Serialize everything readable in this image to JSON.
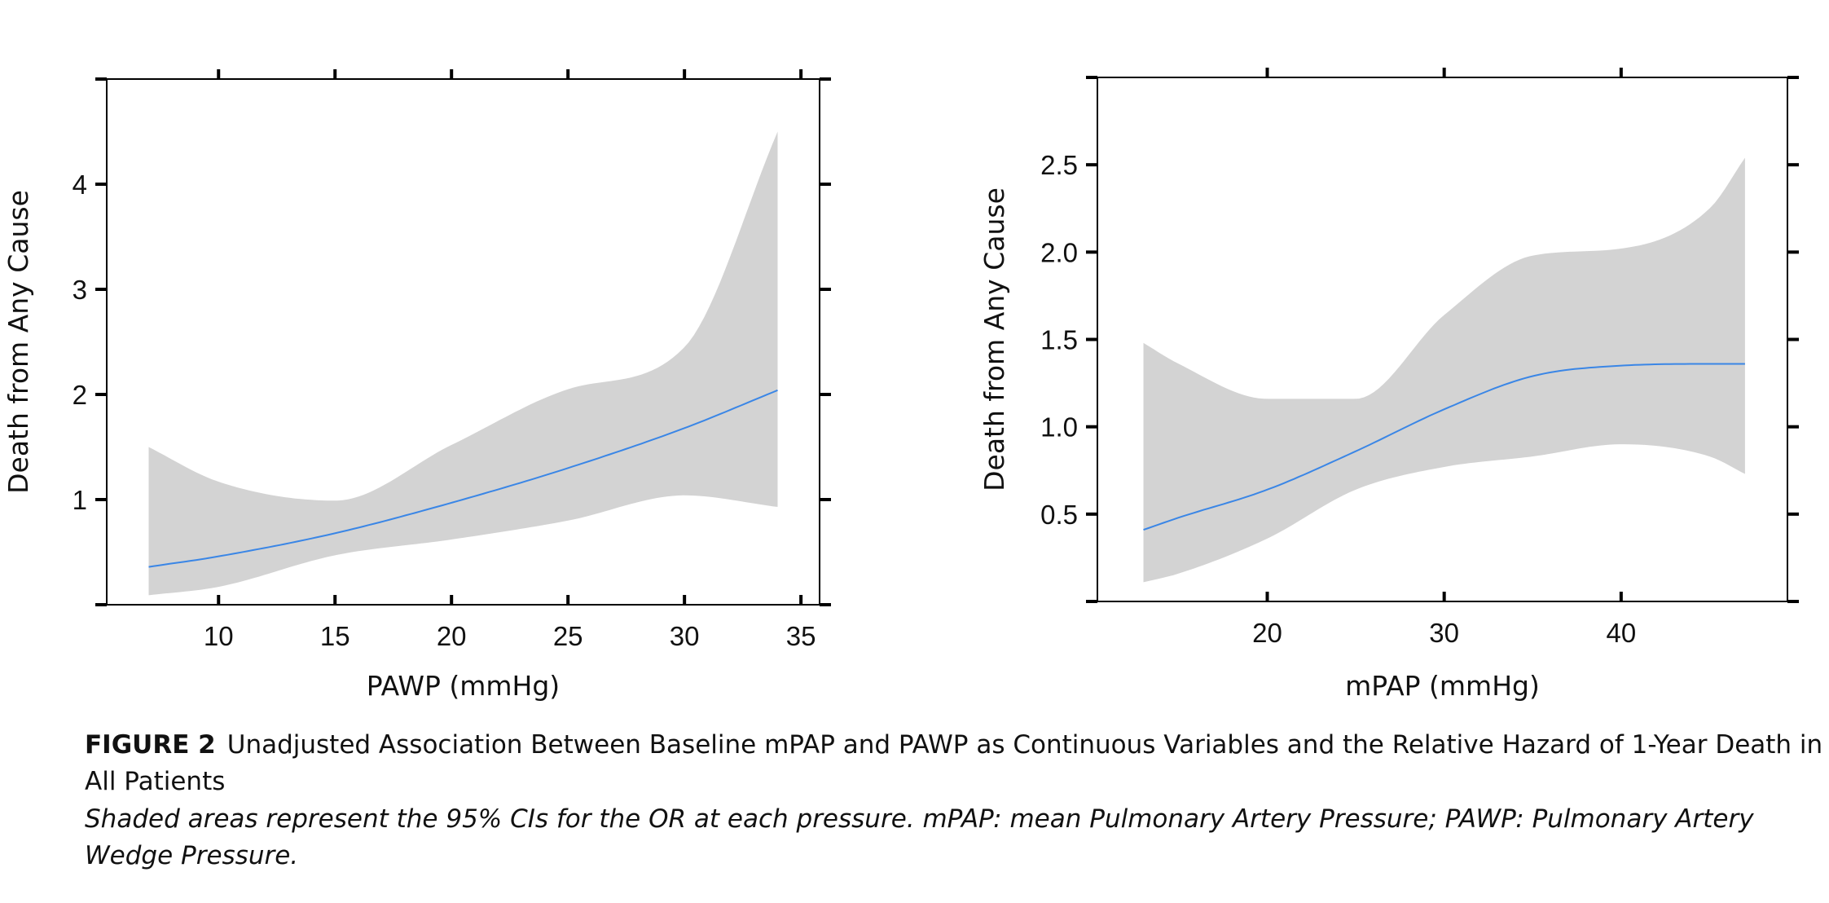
{
  "chart_data": [
    {
      "type": "line",
      "xlabel": "PAWP (mmHg)",
      "ylabel": "Death from Any Cause",
      "xlim": [
        5.2,
        35.8
      ],
      "ylim": [
        0,
        5.0
      ],
      "xticks": [
        10,
        15,
        20,
        25,
        30,
        35
      ],
      "yticks": [
        1,
        2,
        3,
        4
      ],
      "tick_labels_x": [
        "10",
        "15",
        "20",
        "25",
        "30",
        "35"
      ],
      "tick_labels_y": [
        "1",
        "2",
        "3",
        "4"
      ],
      "top_ticks": [
        10,
        15,
        20,
        25,
        30,
        35
      ],
      "right_ticks": [
        0,
        1,
        2,
        3,
        4,
        5
      ],
      "series": [
        {
          "x": [
            7,
            10,
            15,
            20,
            25,
            30,
            34
          ],
          "y": [
            0.36,
            0.46,
            0.68,
            0.97,
            1.3,
            1.68,
            2.04
          ],
          "ci_lower": [
            0.09,
            0.17,
            0.47,
            0.62,
            0.8,
            1.04,
            0.93
          ],
          "ci_upper": [
            1.5,
            1.17,
            0.99,
            1.52,
            2.05,
            2.45,
            4.5
          ]
        }
      ]
    },
    {
      "type": "line",
      "xlabel": "mPAP (mmHg)",
      "ylabel": "Death from Any Cause",
      "xlim": [
        10.4,
        49.4
      ],
      "ylim": [
        0,
        3.0
      ],
      "xticks": [
        20,
        30,
        40
      ],
      "yticks": [
        0.5,
        1.0,
        1.5,
        2.0,
        2.5
      ],
      "tick_labels_x": [
        "20",
        "30",
        "40"
      ],
      "tick_labels_y": [
        "0.5",
        "1.0",
        "1.5",
        "2.0",
        "2.5"
      ],
      "top_ticks": [
        20,
        30,
        40
      ],
      "right_ticks": [
        0,
        0.5,
        1.0,
        1.5,
        2.0,
        2.5,
        3.0
      ],
      "series": [
        {
          "x": [
            13,
            15,
            20,
            25,
            30,
            35,
            40,
            45,
            47
          ],
          "y": [
            0.41,
            0.48,
            0.64,
            0.86,
            1.1,
            1.29,
            1.35,
            1.36,
            1.36
          ],
          "ci_lower": [
            0.11,
            0.16,
            0.36,
            0.64,
            0.77,
            0.83,
            0.9,
            0.83,
            0.73
          ],
          "ci_upper": [
            1.48,
            1.36,
            1.16,
            1.16,
            1.64,
            1.98,
            2.02,
            2.25,
            2.54
          ]
        }
      ]
    }
  ],
  "caption": {
    "label": "FIGURE 2",
    "text": "Unadjusted Association Between Baseline mPAP and PAWP as Continuous Variables and the Relative Hazard of 1-Year Death in All Patients",
    "note": "Shaded areas represent the 95% CIs for the OR at each pressure. mPAP: mean Pulmonary Artery Pressure; PAWP: Pulmonary Artery Wedge Pressure."
  }
}
